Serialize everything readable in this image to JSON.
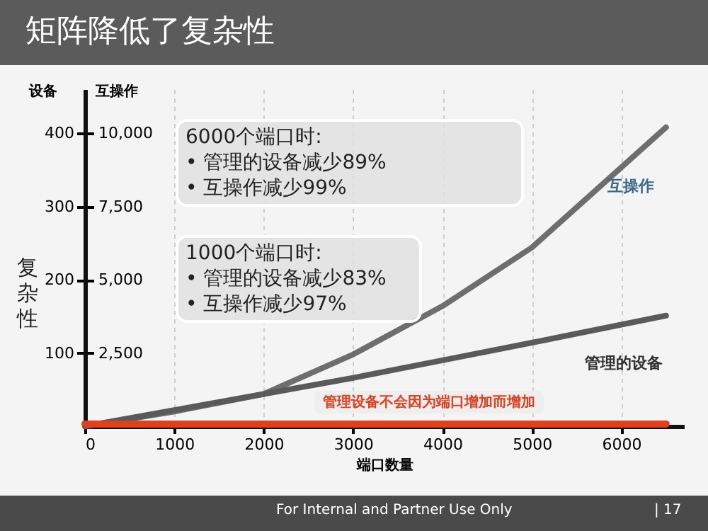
{
  "chart_data": {
    "type": "line",
    "title": "矩阵降低了复杂性",
    "xlabel": "端口数量",
    "ylabel": "设备",
    "y2label": "互操作",
    "x": [
      0,
      1000,
      2000,
      3000,
      4000,
      5000,
      6500
    ],
    "series": [
      {
        "name": "互操作",
        "color": "#6e6e6e",
        "axis": "y2",
        "values": [
          0,
          500,
          1100,
          2450,
          4100,
          6100,
          10200
        ]
      },
      {
        "name": "管理的设备",
        "color": "#5a5a5a",
        "values": [
          0,
          22,
          44,
          66,
          90,
          114,
          151
        ]
      },
      {
        "color": "#e2401c",
        "x": [
          0,
          6500
        ],
        "values": [
          3,
          3
        ]
      }
    ],
    "xlim": [
      0,
      6700
    ],
    "xticks": [
      0,
      1000,
      2000,
      3000,
      4000,
      5000,
      6000
    ],
    "ylim": [
      0,
      460
    ],
    "yticks": [
      100,
      200,
      300,
      400
    ],
    "y2lim": [
      0,
      11500
    ],
    "y2ticks": [
      {
        "value": 2500,
        "label": "2,500"
      },
      {
        "value": 5000,
        "label": "5,000"
      },
      {
        "value": 7500,
        "label": "7,500"
      },
      {
        "value": 10000,
        "label": "10,000"
      }
    ],
    "grid": "x",
    "marker": "none",
    "line_style": "solid",
    "annotations": [
      "6000个端口时:\n• 管理的设备减少89%\n• 互操作减少99%",
      "1000个端口时:\n• 管理的设备减少83%\n• 互操作减少97%",
      "管理设备不会因为端口增加而增加",
      "复杂性",
      "For Internal and Partner Use Only",
      "| 17"
    ]
  }
}
